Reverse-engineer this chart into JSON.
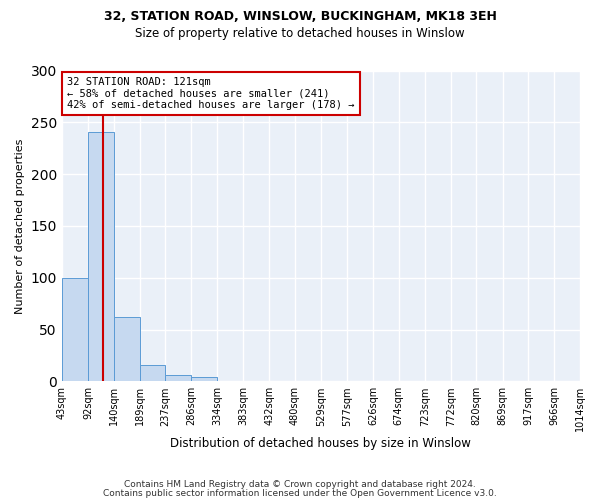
{
  "title1": "32, STATION ROAD, WINSLOW, BUCKINGHAM, MK18 3EH",
  "title2": "Size of property relative to detached houses in Winslow",
  "xlabel": "Distribution of detached houses by size in Winslow",
  "ylabel": "Number of detached properties",
  "bin_edges": [
    43,
    92,
    140,
    189,
    237,
    286,
    334,
    383,
    432,
    480,
    529,
    577,
    626,
    674,
    723,
    772,
    820,
    869,
    917,
    966,
    1014
  ],
  "bar_heights": [
    100,
    241,
    62,
    16,
    6,
    4,
    0,
    0,
    0,
    0,
    0,
    0,
    0,
    0,
    0,
    0,
    0,
    0,
    0,
    0
  ],
  "bar_color": "#c6d9f0",
  "bar_edge_color": "#5b9bd5",
  "property_size": 121,
  "red_line_color": "#cc0000",
  "annotation_line1": "32 STATION ROAD: 121sqm",
  "annotation_line2": "← 58% of detached houses are smaller (241)",
  "annotation_line3": "42% of semi-detached houses are larger (178) →",
  "annotation_box_color": "#ffffff",
  "annotation_border_color": "#cc0000",
  "ylim": [
    0,
    300
  ],
  "yticks": [
    0,
    50,
    100,
    150,
    200,
    250,
    300
  ],
  "background_color": "#eaf0f8",
  "grid_color": "#ffffff",
  "footer1": "Contains HM Land Registry data © Crown copyright and database right 2024.",
  "footer2": "Contains public sector information licensed under the Open Government Licence v3.0."
}
